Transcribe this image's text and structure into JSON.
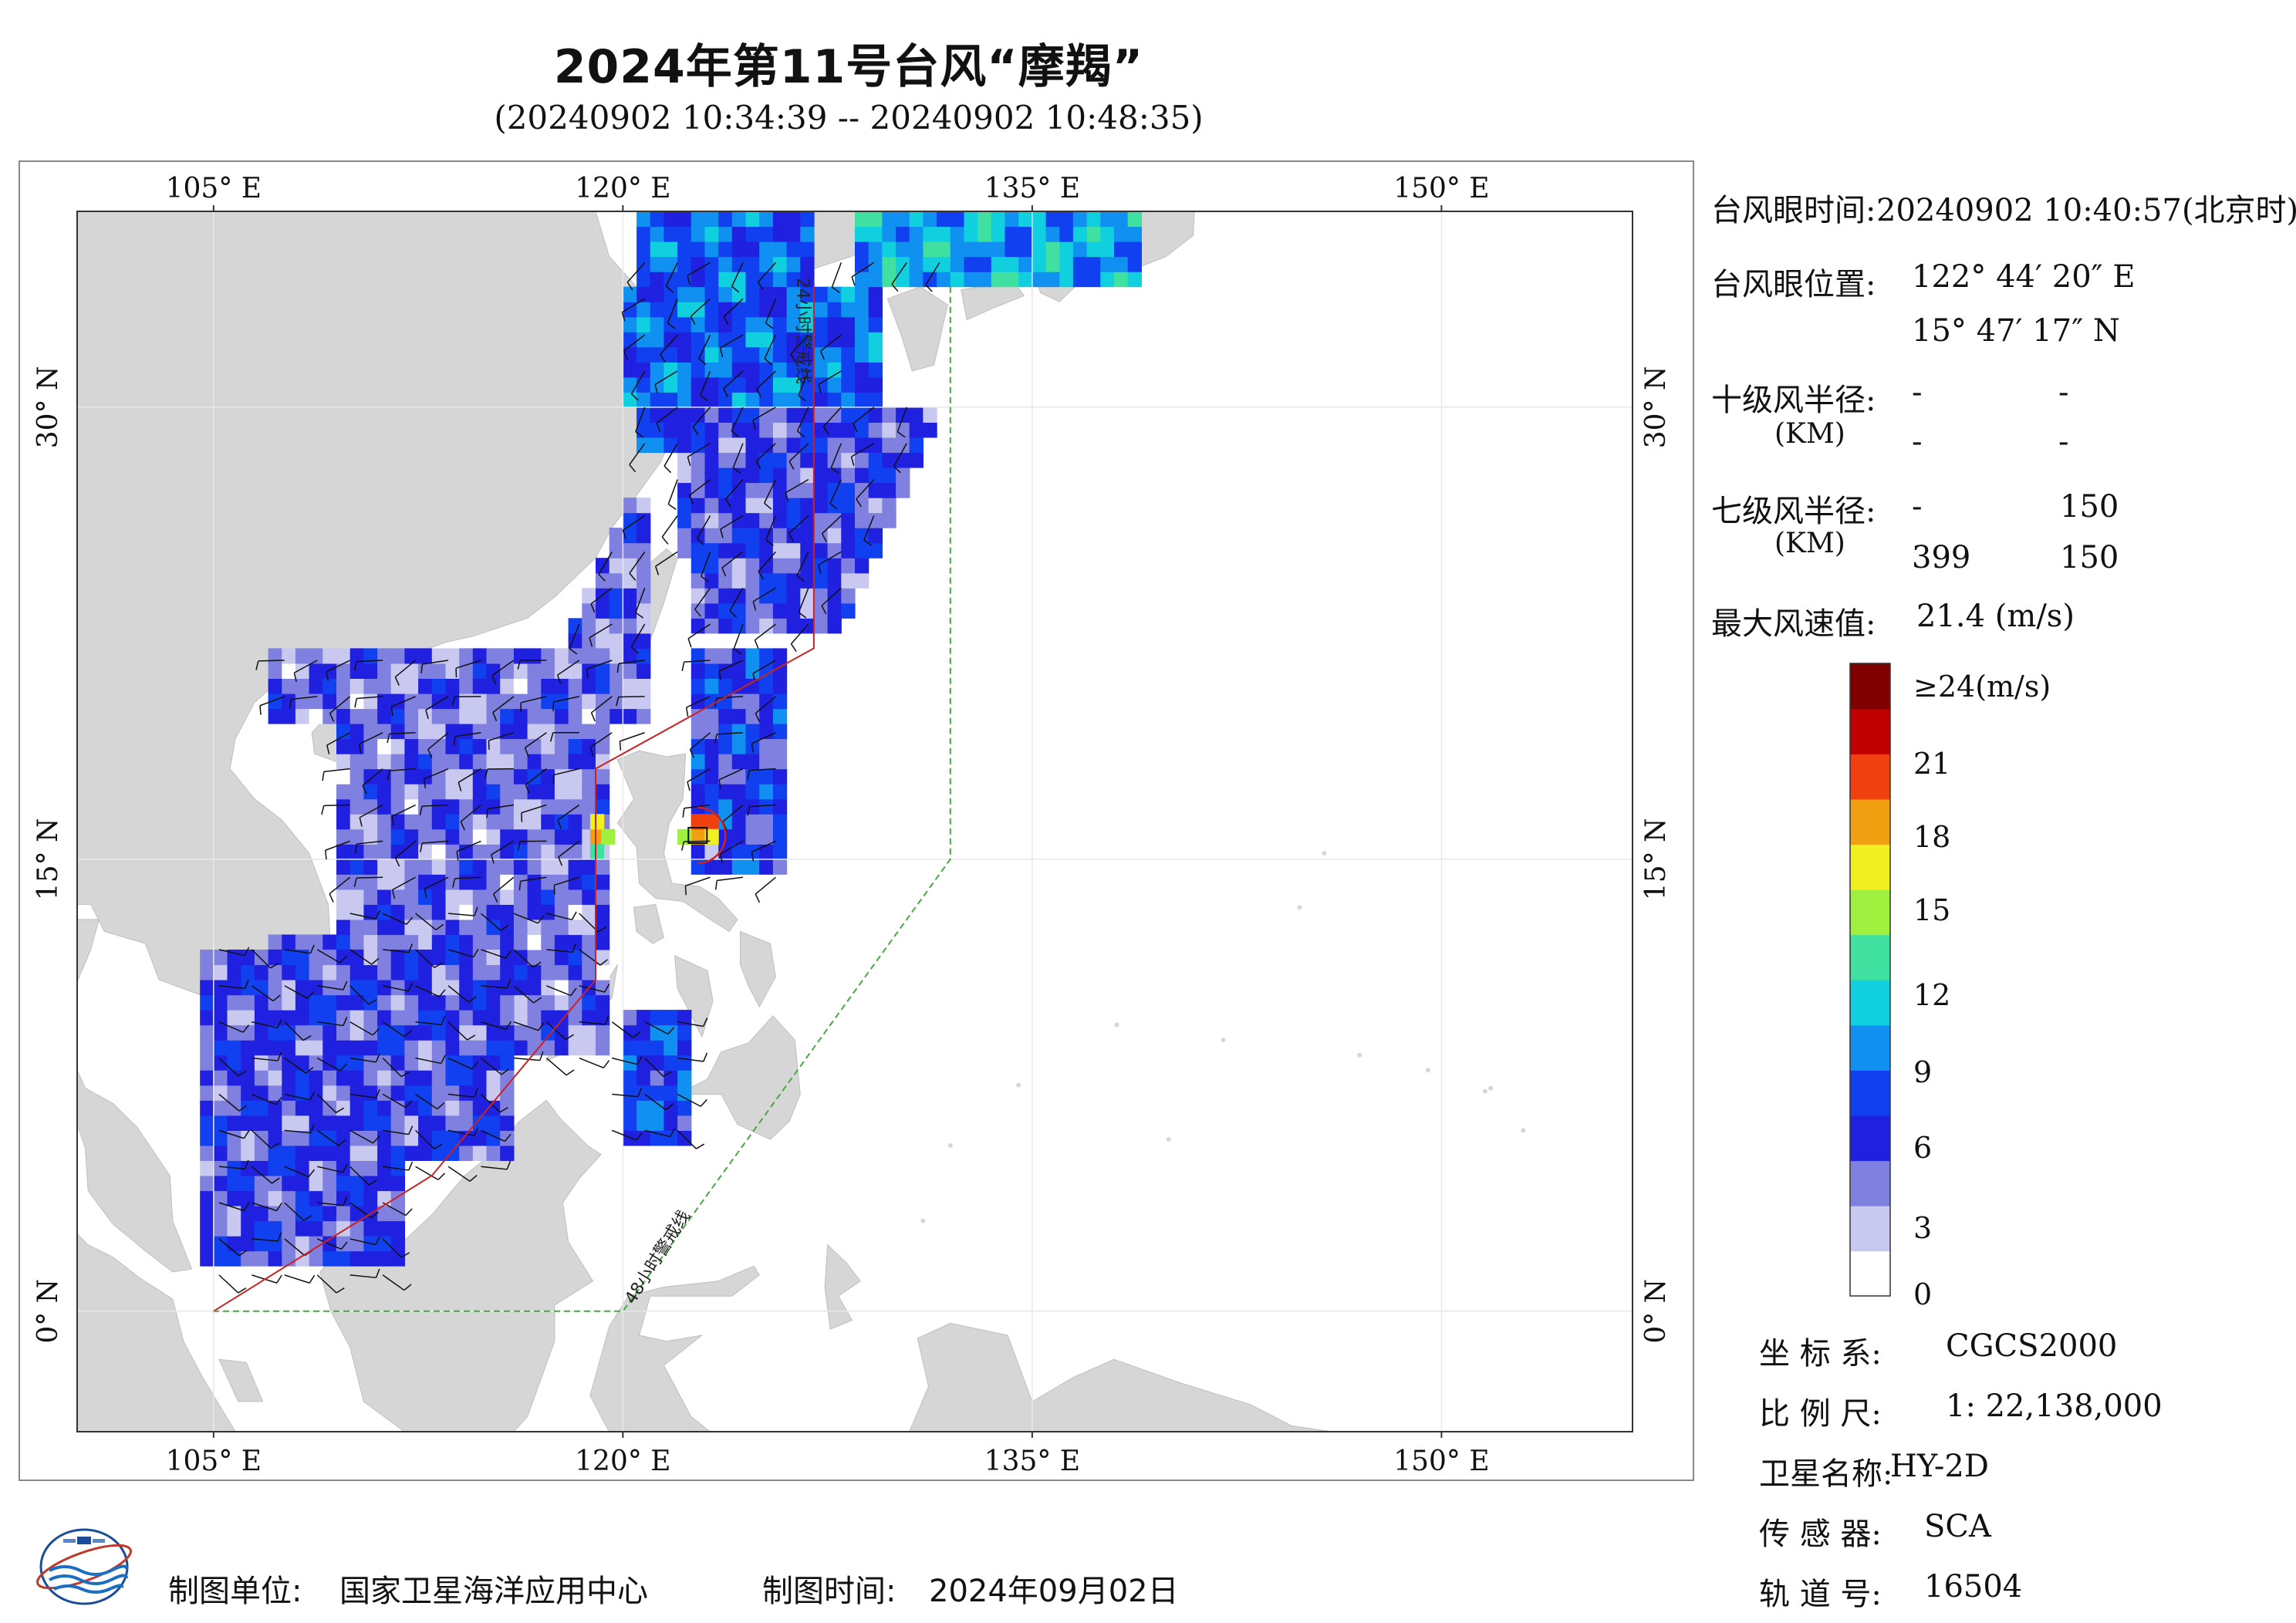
{
  "header": {
    "title": "2024年第11号台风“摩羯”",
    "subtitle": "(20240902 10:34:39 -- 20240902 10:48:35)"
  },
  "map": {
    "lon_range": [
      100,
      157
    ],
    "lat_range": [
      -4,
      36.5
    ],
    "lon_ticks": [
      {
        "lon": 105,
        "label": "105° E"
      },
      {
        "lon": 120,
        "label": "120° E"
      },
      {
        "lon": 135,
        "label": "135° E"
      },
      {
        "lon": 150,
        "label": "150° E"
      }
    ],
    "lat_ticks": [
      {
        "lat": 0,
        "label": "0° N"
      },
      {
        "lat": 15,
        "label": "15° N"
      },
      {
        "lat": 30,
        "label": "30° N"
      }
    ],
    "warning_24h_label": "24小时警戒线",
    "warning_48h_label": "48小时警戒线",
    "colors": {
      "land": "#d6d6d6",
      "ocean": "#ffffff",
      "warning_24h": "#cc2222",
      "warning_48h": "#44aa44"
    }
  },
  "info": {
    "eye_time_label": "台风眼时间:",
    "eye_time_value": "20240902 10:40:57(北京时)",
    "eye_pos_label": "台风眼位置:",
    "eye_lon": "122° 44′ 20″ E",
    "eye_lat": "15° 47′ 17″ N",
    "r10_label": "十级风半径:",
    "r10_unit": "(KM)",
    "r10_row1": [
      "-",
      "-"
    ],
    "r10_row2": [
      "-",
      "-"
    ],
    "r7_label": "七级风半径:",
    "r7_unit": "(KM)",
    "r7_row1": [
      "-",
      "150"
    ],
    "r7_row2": [
      "399",
      "150"
    ],
    "max_wind_label": "最大风速值:",
    "max_wind_value": "21.4  (m/s)"
  },
  "colorbar": {
    "top_label": "≥24(m/s)",
    "ticks": [
      "21",
      "18",
      "15",
      "12",
      "9",
      "6",
      "3",
      "0"
    ],
    "colors": [
      "#ffffff",
      "#c8c8f0",
      "#8080e0",
      "#2020e0",
      "#1040f0",
      "#1090f0",
      "#10d0e0",
      "#40e0a0",
      "#a0f040",
      "#f0f020",
      "#f0a010",
      "#f04010",
      "#c00000",
      "#800000"
    ]
  },
  "meta": {
    "crs_label": "坐 标 系:",
    "crs_value": "CGCS2000",
    "scale_label": "比 例 尺:",
    "scale_value": "1: 22,138,000",
    "sat_label": "卫星名称:",
    "sat_value": "HY-2D",
    "sensor_label": "传 感 器:",
    "sensor_value": "SCA",
    "orbit_label": "轨 道 号:",
    "orbit_value": "16504"
  },
  "footer": {
    "org_label": "制图单位:",
    "org_value": "国家卫星海洋应用中心",
    "date_label": "制图时间:",
    "date_value": "2024年09月02日"
  }
}
